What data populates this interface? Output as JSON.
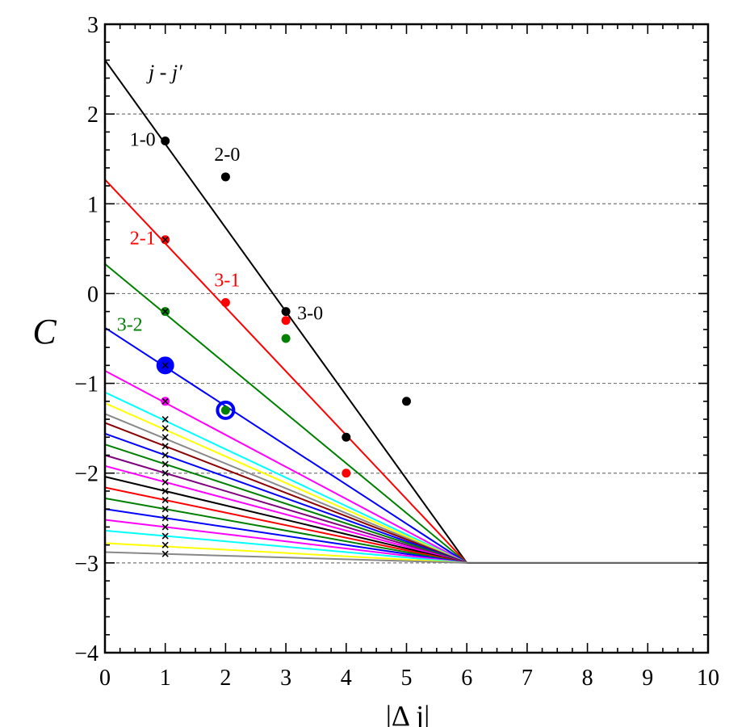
{
  "chart_data": {
    "type": "line",
    "title": "",
    "xlabel": "|Δ j|",
    "ylabel": "C",
    "xlim": [
      0,
      10
    ],
    "ylim": [
      -4,
      3
    ],
    "x_ticks": [
      0,
      1,
      2,
      3,
      4,
      5,
      6,
      7,
      8,
      9,
      10
    ],
    "y_ticks": [
      -4,
      -3,
      -2,
      -1,
      0,
      1,
      2,
      3
    ],
    "y_tick_labels": [
      "−4",
      "−3",
      "−2",
      "−1",
      "0",
      "1",
      "2",
      "3"
    ],
    "grid": "horizontal dashed at integer C",
    "header_label": "j - j′",
    "convergence_point": [
      6,
      -3
    ],
    "lines": [
      {
        "c0": 2.6,
        "color": "#000000",
        "label": "1-0"
      },
      {
        "c0": 1.27,
        "color": "#ff0000",
        "label": "2-1"
      },
      {
        "c0": 0.33,
        "color": "#008000",
        "label": "3-2"
      },
      {
        "c0": -0.38,
        "color": "#0000ff"
      },
      {
        "c0": -0.86,
        "color": "#ff00ff"
      },
      {
        "c0": -1.1,
        "color": "#00ffff"
      },
      {
        "c0": -1.22,
        "color": "#ffff00"
      },
      {
        "c0": -1.34,
        "color": "#888888"
      },
      {
        "c0": -1.44,
        "color": "#8b0000"
      },
      {
        "c0": -1.56,
        "color": "#0000ff"
      },
      {
        "c0": -1.68,
        "color": "#008000"
      },
      {
        "c0": -1.8,
        "color": "#800080"
      },
      {
        "c0": -1.92,
        "color": "#ff00ff"
      },
      {
        "c0": -2.04,
        "color": "#000000"
      },
      {
        "c0": -2.16,
        "color": "#ff0000"
      },
      {
        "c0": -2.28,
        "color": "#008000"
      },
      {
        "c0": -2.4,
        "color": "#0000ff"
      },
      {
        "c0": -2.52,
        "color": "#ff00ff"
      },
      {
        "c0": -2.64,
        "color": "#00ffff"
      },
      {
        "c0": -2.78,
        "color": "#ffff00"
      },
      {
        "c0": -2.88,
        "color": "#888888"
      }
    ],
    "points": [
      {
        "x": 1,
        "y": 1.7,
        "color": "#000000",
        "style": "dot"
      },
      {
        "x": 2,
        "y": 1.3,
        "color": "#000000",
        "style": "dot"
      },
      {
        "x": 3,
        "y": -0.2,
        "color": "#000000",
        "style": "dot"
      },
      {
        "x": 4,
        "y": -1.6,
        "color": "#000000",
        "style": "dot"
      },
      {
        "x": 5,
        "y": -1.2,
        "color": "#000000",
        "style": "dot"
      },
      {
        "x": 1,
        "y": 0.6,
        "color": "#ff0000",
        "style": "dot-x"
      },
      {
        "x": 2,
        "y": -0.1,
        "color": "#ff0000",
        "style": "dot"
      },
      {
        "x": 3,
        "y": -0.3,
        "color": "#ff0000",
        "style": "dot"
      },
      {
        "x": 4,
        "y": -2.0,
        "color": "#ff0000",
        "style": "dot"
      },
      {
        "x": 1,
        "y": -0.2,
        "color": "#008000",
        "style": "dot-x"
      },
      {
        "x": 3,
        "y": -0.5,
        "color": "#008000",
        "style": "dot"
      },
      {
        "x": 2,
        "y": -1.3,
        "color": "#008000",
        "style": "dot"
      },
      {
        "x": 1,
        "y": -0.8,
        "color": "#0000ff",
        "style": "big-dot-x"
      },
      {
        "x": 2,
        "y": -1.3,
        "color": "#0000ff",
        "style": "ring"
      },
      {
        "x": 1,
        "y": -1.2,
        "color": "#ff00ff",
        "style": "dot-x"
      }
    ],
    "x_markers": {
      "x": 1,
      "values": [
        -1.4,
        -1.5,
        -1.6,
        -1.7,
        -1.8,
        -1.9,
        -2.0,
        -2.1,
        -2.2,
        -2.3,
        -2.4,
        -2.5,
        -2.6,
        -2.7,
        -2.8,
        -2.9
      ]
    },
    "annotations": [
      {
        "text": "1-0",
        "x": 1,
        "y": 1.7,
        "color": "#000000",
        "pos": "left"
      },
      {
        "text": "2-0",
        "x": 2,
        "y": 1.3,
        "color": "#000000",
        "pos": "above"
      },
      {
        "text": "3-0",
        "x": 3,
        "y": -0.2,
        "color": "#000000",
        "pos": "right"
      },
      {
        "text": "2-1",
        "x": 1,
        "y": 0.6,
        "color": "#ff0000",
        "pos": "left"
      },
      {
        "text": "3-1",
        "x": 2,
        "y": -0.1,
        "color": "#ff0000",
        "pos": "above"
      },
      {
        "text": "3-2",
        "x": 1,
        "y": -0.2,
        "color": "#008000",
        "pos": "below-left"
      }
    ]
  }
}
